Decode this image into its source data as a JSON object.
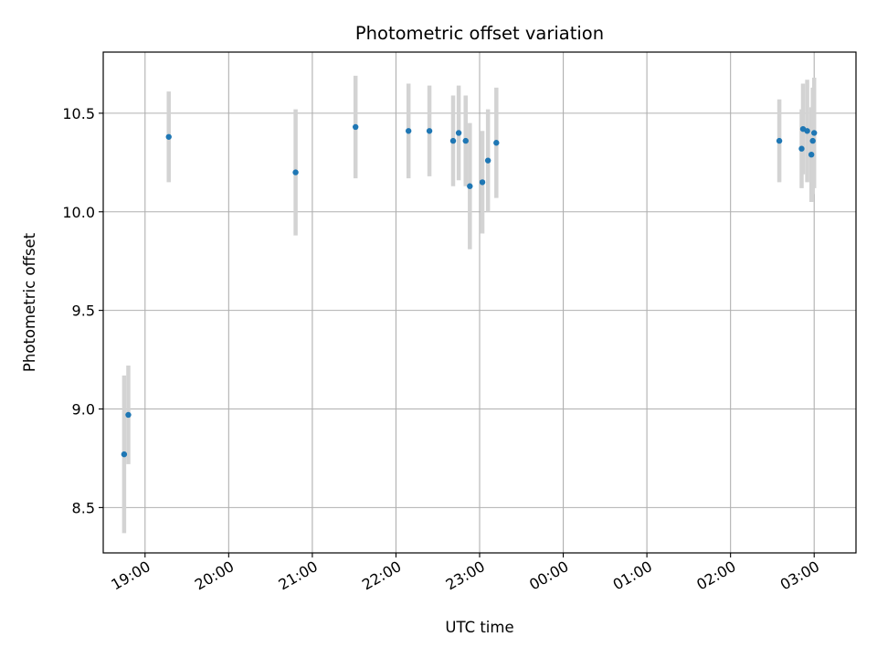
{
  "chart_data": {
    "type": "scatter",
    "title": "Photometric offset variation",
    "xlabel": "UTC time",
    "ylabel": "Photometric offset",
    "x_axis": "time",
    "xlim": [
      "18:30",
      "03:30"
    ],
    "ylim": [
      8.27,
      10.81
    ],
    "x_tick_labels": [
      "19:00",
      "20:00",
      "21:00",
      "22:00",
      "23:00",
      "00:00",
      "01:00",
      "02:00",
      "03:00"
    ],
    "y_ticks": [
      8.5,
      9.0,
      9.5,
      10.0,
      10.5
    ],
    "y_tick_labels": [
      "8.5",
      "9.0",
      "9.5",
      "10.0",
      "10.5"
    ],
    "grid": true,
    "colors": {
      "marker": "#1f77b4",
      "errorbar": "#d3d3d3",
      "grid": "#b0b0b0"
    },
    "series": [
      {
        "points": [
          {
            "t": "18:45",
            "y": 8.77,
            "err": 0.4
          },
          {
            "t": "18:48",
            "y": 8.97,
            "err": 0.25
          },
          {
            "t": "19:17",
            "y": 10.38,
            "err": 0.23
          },
          {
            "t": "20:48",
            "y": 10.2,
            "err": 0.32
          },
          {
            "t": "21:31",
            "y": 10.43,
            "err": 0.26
          },
          {
            "t": "22:09",
            "y": 10.41,
            "err": 0.24
          },
          {
            "t": "22:24",
            "y": 10.41,
            "err": 0.23
          },
          {
            "t": "22:41",
            "y": 10.36,
            "err": 0.23
          },
          {
            "t": "22:45",
            "y": 10.4,
            "err": 0.24
          },
          {
            "t": "22:50",
            "y": 10.36,
            "err": 0.23
          },
          {
            "t": "22:53",
            "y": 10.13,
            "err": 0.32
          },
          {
            "t": "23:02",
            "y": 10.15,
            "err": 0.26
          },
          {
            "t": "23:06",
            "y": 10.26,
            "err": 0.26
          },
          {
            "t": "23:12",
            "y": 10.35,
            "err": 0.28
          },
          {
            "t": "02:35",
            "y": 10.36,
            "err": 0.21
          },
          {
            "t": "02:51",
            "y": 10.32,
            "err": 0.2
          },
          {
            "t": "02:52",
            "y": 10.42,
            "err": 0.23
          },
          {
            "t": "02:55",
            "y": 10.41,
            "err": 0.26
          },
          {
            "t": "02:58",
            "y": 10.29,
            "err": 0.24
          },
          {
            "t": "02:59",
            "y": 10.36,
            "err": 0.27
          },
          {
            "t": "03:00",
            "y": 10.4,
            "err": 0.28
          }
        ]
      }
    ]
  }
}
